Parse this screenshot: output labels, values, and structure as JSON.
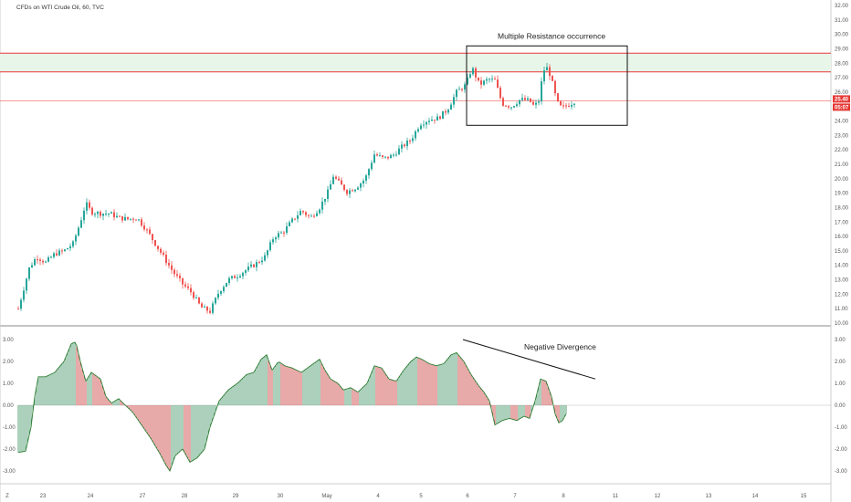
{
  "header": {
    "symbol_label": "CFDs on WTI Crude Oil, 60, TVC"
  },
  "colors": {
    "up": "#26a69a",
    "down": "#ef5350",
    "osc_up": "#2e8b57",
    "osc_down": "#c62828",
    "resistance": "#e53935",
    "zone_fill": "#e8f5e9",
    "annotation": "#111111",
    "axis_text": "#555555",
    "grid_border": "#cccccc"
  },
  "chart_data": [
    {
      "type": "candlestick",
      "title": "CFDs on WTI Crude Oil, 60, TVC",
      "ylim": [
        10.0,
        32.0
      ],
      "ytick_labels": [
        "10.00",
        "11.00",
        "12.00",
        "13.00",
        "14.00",
        "15.00",
        "16.00",
        "17.00",
        "18.00",
        "19.00",
        "20.00",
        "21.00",
        "22.00",
        "23.00",
        "24.00",
        "25.00",
        "26.00",
        "27.00",
        "28.00",
        "29.00",
        "30.00",
        "31.00",
        "32.00"
      ],
      "x_labels": [
        "Z",
        "23",
        "24",
        "27",
        "28",
        "29",
        "30",
        "May",
        "4",
        "5",
        "6",
        "7",
        "8",
        "11",
        "12",
        "13",
        "14",
        "15"
      ],
      "price_path": [
        [
          0,
          11.0
        ],
        [
          12,
          13.8
        ],
        [
          20,
          14.6
        ],
        [
          30,
          14.2
        ],
        [
          40,
          14.8
        ],
        [
          50,
          15.0
        ],
        [
          60,
          15.5
        ],
        [
          68,
          17.0
        ],
        [
          74,
          18.3
        ],
        [
          80,
          17.7
        ],
        [
          90,
          17.6
        ],
        [
          100,
          17.6
        ],
        [
          110,
          17.3
        ],
        [
          120,
          17.2
        ],
        [
          130,
          17.3
        ],
        [
          140,
          16.5
        ],
        [
          150,
          15.5
        ],
        [
          160,
          14.5
        ],
        [
          170,
          13.5
        ],
        [
          180,
          12.7
        ],
        [
          190,
          12.1
        ],
        [
          200,
          11.1
        ],
        [
          210,
          10.8
        ],
        [
          220,
          12.2
        ],
        [
          230,
          13.0
        ],
        [
          240,
          13.3
        ],
        [
          250,
          13.7
        ],
        [
          260,
          14.1
        ],
        [
          270,
          14.6
        ],
        [
          280,
          16.0
        ],
        [
          290,
          16.3
        ],
        [
          300,
          17.1
        ],
        [
          310,
          17.8
        ],
        [
          320,
          17.3
        ],
        [
          330,
          18.0
        ],
        [
          340,
          19.2
        ],
        [
          345,
          20.2
        ],
        [
          350,
          19.8
        ],
        [
          360,
          19.1
        ],
        [
          370,
          19.4
        ],
        [
          380,
          20.0
        ],
        [
          390,
          21.7
        ],
        [
          400,
          21.4
        ],
        [
          410,
          21.6
        ],
        [
          420,
          22.2
        ],
        [
          430,
          22.7
        ],
        [
          440,
          23.8
        ],
        [
          450,
          24.1
        ],
        [
          460,
          24.2
        ],
        [
          470,
          24.8
        ],
        [
          480,
          26.0
        ],
        [
          490,
          26.5
        ],
        [
          497,
          27.7
        ],
        [
          505,
          26.5
        ],
        [
          515,
          26.9
        ],
        [
          522,
          26.8
        ],
        [
          530,
          25.2
        ],
        [
          540,
          25.0
        ],
        [
          550,
          25.5
        ],
        [
          560,
          25.4
        ],
        [
          565,
          25.0
        ],
        [
          570,
          25.4
        ],
        [
          575,
          27.5
        ],
        [
          580,
          27.7
        ],
        [
          585,
          26.6
        ],
        [
          590,
          25.3
        ],
        [
          595,
          24.9
        ],
        [
          605,
          25.2
        ],
        [
          610,
          25.4
        ]
      ],
      "current_price": 25.4,
      "price_tags": [
        "25.40",
        "05:07"
      ],
      "resistance_zone": [
        27.4,
        28.7
      ],
      "resistance_line": 25.4,
      "annotation": {
        "text": "Multiple Resistance  occurrence",
        "price_range": [
          23.7,
          29.2
        ]
      }
    },
    {
      "type": "histogram",
      "name": "oscillator",
      "ylim": [
        -3.5,
        3.5
      ],
      "ytick_labels": [
        "-3.00",
        "-2.00",
        "-1.00",
        "0.00",
        "1.00",
        "2.00",
        "3.00"
      ],
      "values_path": [
        [
          0,
          -2.15
        ],
        [
          8,
          -2.1
        ],
        [
          14,
          -1.0
        ],
        [
          18,
          0.4
        ],
        [
          22,
          1.3
        ],
        [
          30,
          1.3
        ],
        [
          40,
          1.5
        ],
        [
          50,
          2.0
        ],
        [
          58,
          2.8
        ],
        [
          63,
          2.9
        ],
        [
          68,
          2.0
        ],
        [
          74,
          1.1
        ],
        [
          80,
          1.5
        ],
        [
          90,
          1.2
        ],
        [
          96,
          0.4
        ],
        [
          102,
          0.1
        ],
        [
          110,
          0.3
        ],
        [
          116,
          0.05
        ],
        [
          125,
          -0.3
        ],
        [
          135,
          -0.9
        ],
        [
          145,
          -1.5
        ],
        [
          155,
          -2.2
        ],
        [
          162,
          -2.75
        ],
        [
          166,
          -3.0
        ],
        [
          172,
          -2.3
        ],
        [
          180,
          -2.0
        ],
        [
          188,
          -2.6
        ],
        [
          196,
          -2.4
        ],
        [
          204,
          -2.0
        ],
        [
          210,
          -1.0
        ],
        [
          220,
          0.2
        ],
        [
          230,
          0.7
        ],
        [
          240,
          1.0
        ],
        [
          250,
          1.4
        ],
        [
          258,
          1.5
        ],
        [
          266,
          2.1
        ],
        [
          272,
          2.3
        ],
        [
          278,
          1.6
        ],
        [
          285,
          2.0
        ],
        [
          292,
          1.8
        ],
        [
          300,
          1.7
        ],
        [
          310,
          1.5
        ],
        [
          320,
          1.8
        ],
        [
          330,
          2.1
        ],
        [
          336,
          1.6
        ],
        [
          342,
          1.2
        ],
        [
          350,
          1.0
        ],
        [
          356,
          0.7
        ],
        [
          364,
          0.8
        ],
        [
          372,
          0.6
        ],
        [
          382,
          1.0
        ],
        [
          390,
          1.8
        ],
        [
          398,
          1.7
        ],
        [
          406,
          1.2
        ],
        [
          414,
          1.1
        ],
        [
          422,
          1.6
        ],
        [
          430,
          2.0
        ],
        [
          436,
          2.2
        ],
        [
          442,
          2.1
        ],
        [
          450,
          1.9
        ],
        [
          458,
          1.8
        ],
        [
          466,
          1.9
        ],
        [
          474,
          2.3
        ],
        [
          480,
          2.4
        ],
        [
          488,
          2.0
        ],
        [
          496,
          1.4
        ],
        [
          504,
          0.9
        ],
        [
          510,
          0.6
        ],
        [
          516,
          0.2
        ],
        [
          522,
          -0.9
        ],
        [
          530,
          -0.7
        ],
        [
          538,
          -0.6
        ],
        [
          546,
          -0.7
        ],
        [
          554,
          -0.5
        ],
        [
          560,
          -0.6
        ],
        [
          566,
          0.2
        ],
        [
          572,
          1.2
        ],
        [
          578,
          1.1
        ],
        [
          584,
          0.4
        ],
        [
          588,
          -0.4
        ],
        [
          592,
          -0.8
        ],
        [
          596,
          -0.7
        ],
        [
          600,
          -0.4
        ]
      ],
      "annotation": {
        "text": "Negative Divergence"
      }
    }
  ]
}
